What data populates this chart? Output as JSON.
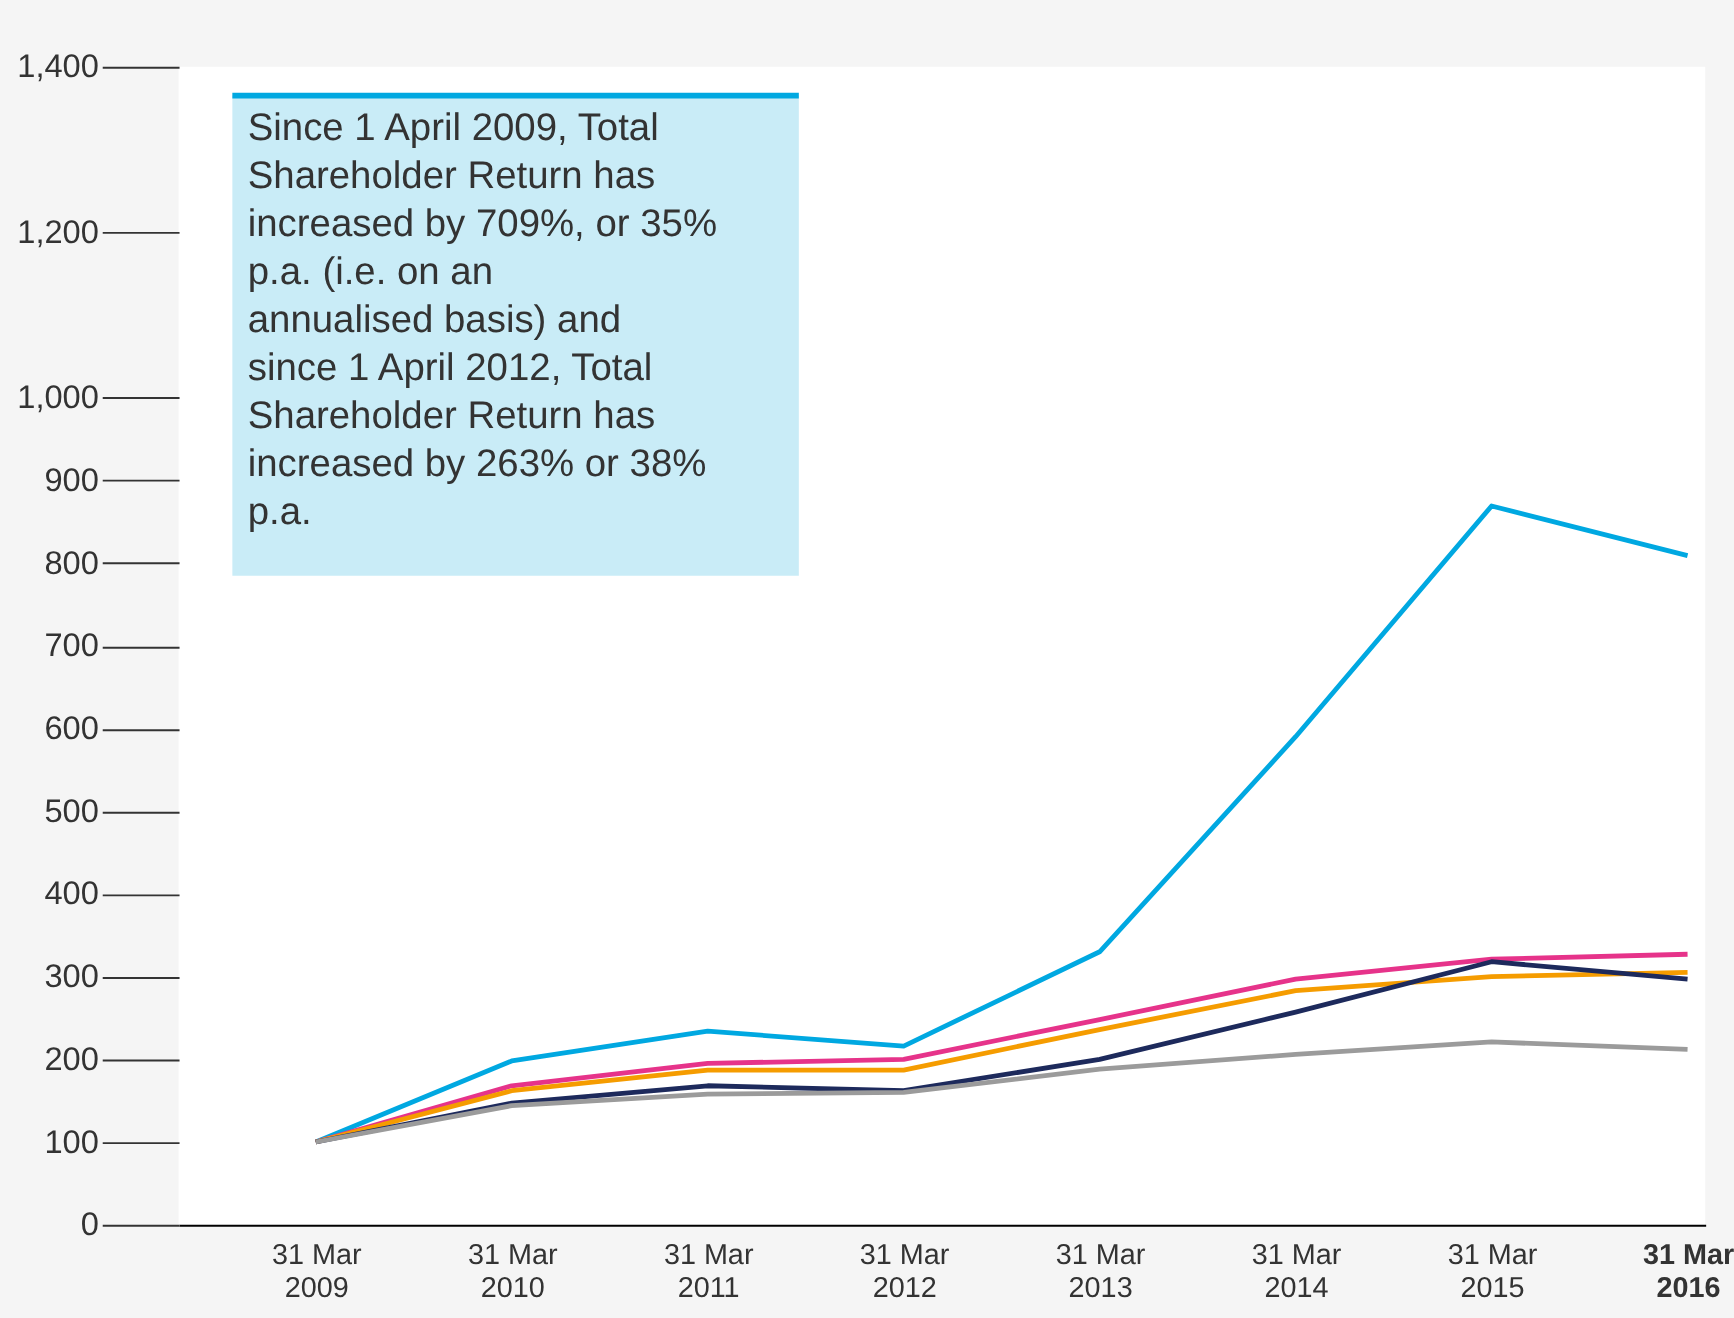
{
  "chart_data": {
    "type": "line",
    "categories": [
      "31 Mar 2009",
      "31 Mar 2010",
      "31 Mar 2011",
      "31 Mar 2012",
      "31 Mar 2013",
      "31 Mar 2014",
      "31 Mar 2015",
      "31 Mar 2016"
    ],
    "series": [
      {
        "color": "#00a8e1",
        "values": [
          100,
          198,
          234,
          216,
          330,
          590,
          869,
          809
        ]
      },
      {
        "color": "#e6338a",
        "values": [
          100,
          168,
          195,
          200,
          248,
          297,
          321,
          327
        ]
      },
      {
        "color": "#f59c00",
        "values": [
          100,
          162,
          187,
          187,
          236,
          283,
          300,
          305
        ]
      },
      {
        "color": "#1d2a5c",
        "values": [
          100,
          147,
          168,
          162,
          200,
          257,
          318,
          297
        ]
      },
      {
        "color": "#9b9b9b",
        "values": [
          100,
          144,
          158,
          160,
          188,
          206,
          221,
          212
        ]
      }
    ],
    "ylim": [
      0,
      1400
    ],
    "yticks": [
      0,
      100,
      200,
      300,
      400,
      500,
      600,
      700,
      800,
      900,
      {
        "value": 1000,
        "label": "1,000"
      },
      {
        "value": 1200,
        "label": "1,200"
      },
      {
        "value": 1400,
        "label": "1,400"
      }
    ],
    "annotations": [
      "Since 1 April 2009, Total Shareholder Return has increased by 709%, or 35% p.a. (i.e. on an annualised basis) and since 1 April 2012, Total Shareholder Return has increased by 263% or 38% p.a."
    ],
    "grid": false,
    "legend": false,
    "marker": "none",
    "line_style": "solid"
  }
}
